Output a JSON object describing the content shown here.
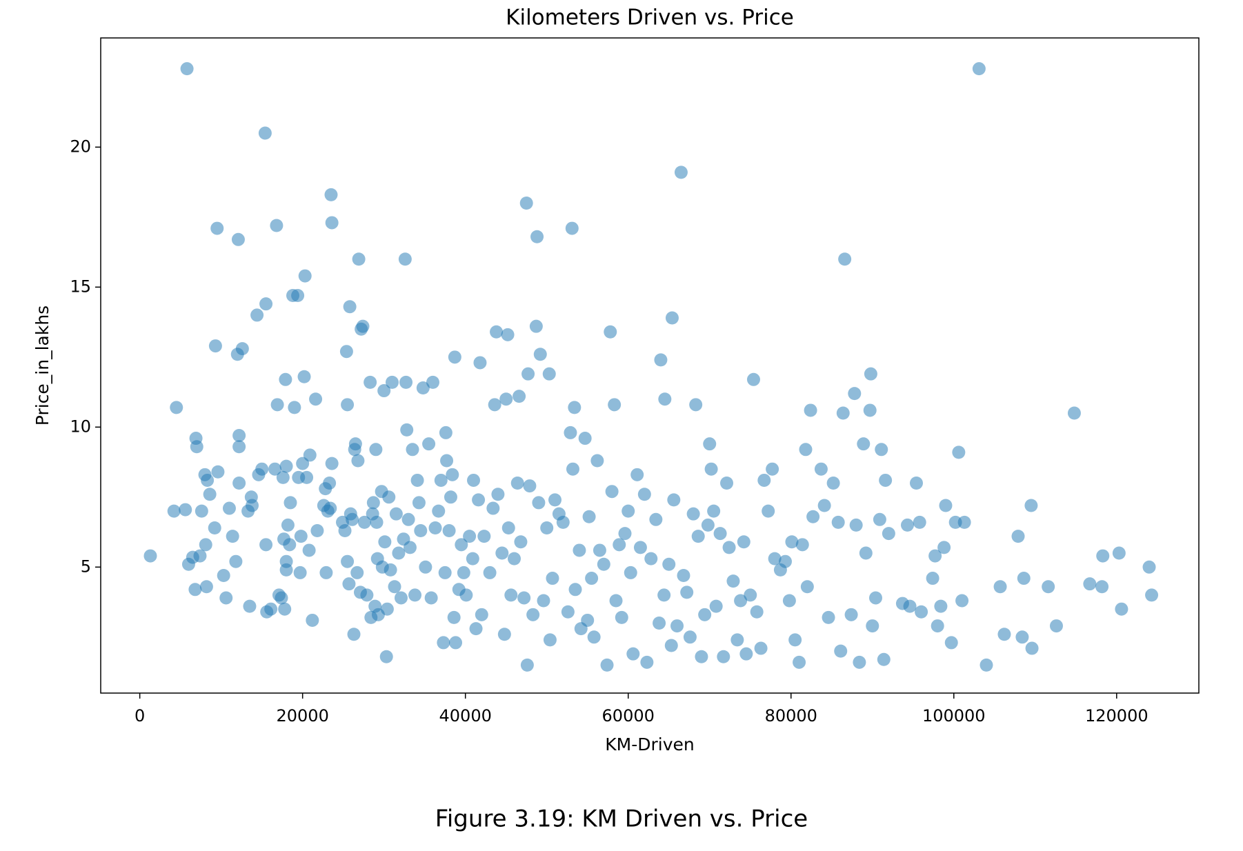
{
  "chart_data": {
    "type": "scatter",
    "title": "Kilometers Driven vs. Price",
    "x_label": "KM-Driven",
    "y_label": "Price_in_lakhs",
    "caption": "Figure 3.19: KM Driven vs. Price",
    "color": "#1f77b4",
    "alpha": 0.5,
    "xlim": [
      -4800,
      130100
    ],
    "ylim": [
      0.5,
      23.9
    ],
    "xticks": [
      0,
      20000,
      40000,
      60000,
      80000,
      100000,
      120000
    ],
    "yticks": [
      5,
      10,
      15,
      20
    ],
    "x": [
      1300,
      4200,
      4500,
      5600,
      5800,
      6000,
      6500,
      6800,
      6900,
      7000,
      7400,
      7600,
      8000,
      8100,
      8200,
      8300,
      8600,
      9200,
      9300,
      9500,
      9600,
      10300,
      10600,
      11000,
      11400,
      11800,
      12000,
      12100,
      12200,
      12200,
      12200,
      12600,
      13300,
      13500,
      13700,
      13800,
      14400,
      14600,
      15000,
      15400,
      15500,
      15500,
      15600,
      16100,
      16600,
      16800,
      16900,
      17100,
      17400,
      17600,
      17700,
      17800,
      17900,
      18000,
      18000,
      18000,
      18200,
      18400,
      18500,
      18800,
      19000,
      19400,
      19500,
      19700,
      19800,
      20000,
      20200,
      20300,
      20500,
      20800,
      20900,
      21200,
      21600,
      21800,
      22600,
      22800,
      22900,
      23100,
      23300,
      23400,
      23500,
      23600,
      23600,
      24900,
      25200,
      25400,
      25500,
      25500,
      25700,
      25800,
      25900,
      26100,
      26300,
      26400,
      26500,
      26700,
      26800,
      26900,
      27100,
      27200,
      27400,
      27600,
      27900,
      28300,
      28400,
      28600,
      28700,
      28900,
      29000,
      29100,
      29200,
      29300,
      29700,
      29800,
      30000,
      30100,
      30300,
      30400,
      30600,
      30800,
      31000,
      31300,
      31500,
      31800,
      32100,
      32400,
      32600,
      32700,
      32800,
      33000,
      33200,
      33500,
      33800,
      34100,
      34300,
      34500,
      34800,
      35100,
      35500,
      35800,
      36000,
      36300,
      36700,
      37000,
      37300,
      37500,
      37600,
      37700,
      38000,
      38200,
      38400,
      38600,
      38700,
      38800,
      39200,
      39500,
      39800,
      40100,
      40500,
      40900,
      41000,
      41300,
      41600,
      41800,
      42000,
      42300,
      43000,
      43400,
      43600,
      43800,
      44000,
      44500,
      44800,
      45000,
      45200,
      45300,
      45600,
      46000,
      46400,
      46600,
      46800,
      47200,
      47500,
      47600,
      47700,
      47900,
      48300,
      48700,
      48800,
      49000,
      49200,
      49600,
      50000,
      50300,
      50400,
      50700,
      51000,
      51500,
      52000,
      52600,
      52900,
      53100,
      53200,
      53400,
      53500,
      54000,
      54200,
      54700,
      55000,
      55200,
      55500,
      55800,
      56200,
      56500,
      57000,
      57400,
      57800,
      58000,
      58300,
      58500,
      58900,
      59200,
      59600,
      60000,
      60300,
      60600,
      61100,
      61500,
      62000,
      62300,
      62800,
      63400,
      63800,
      64000,
      64400,
      64500,
      65000,
      65300,
      65400,
      65600,
      66000,
      66500,
      66800,
      67200,
      67600,
      68000,
      68300,
      68600,
      69000,
      69400,
      69800,
      70000,
      70200,
      70500,
      70800,
      71300,
      71700,
      72100,
      72400,
      72900,
      73400,
      73800,
      74200,
      74500,
      75000,
      75400,
      75800,
      76300,
      76700,
      77200,
      77700,
      78000,
      78700,
      79300,
      79800,
      80100,
      80500,
      81000,
      81400,
      81800,
      82000,
      82400,
      82700,
      83700,
      84100,
      84600,
      85200,
      85800,
      86100,
      86400,
      86600,
      87400,
      87800,
      88000,
      88400,
      88900,
      89200,
      89700,
      89800,
      90000,
      90400,
      90900,
      91100,
      91400,
      91600,
      92000,
      93700,
      94300,
      94600,
      95400,
      95800,
      96000,
      97400,
      97700,
      98000,
      98400,
      98800,
      99000,
      99700,
      100200,
      100600,
      101000,
      101300,
      103100,
      104000,
      105700,
      106200,
      107900,
      108400,
      108600,
      109500,
      109600,
      111600,
      112600,
      114800,
      116700,
      118200,
      118300,
      120300,
      120600,
      124000,
      124300
    ],
    "values": [
      5.4,
      7.0,
      10.7,
      7.05,
      22.8,
      5.1,
      5.35,
      4.2,
      9.6,
      9.3,
      5.4,
      7.0,
      8.3,
      5.8,
      4.3,
      8.1,
      7.6,
      6.4,
      12.9,
      17.1,
      8.4,
      4.7,
      3.9,
      7.1,
      6.1,
      5.2,
      12.6,
      16.7,
      9.7,
      9.3,
      8.0,
      12.8,
      7.0,
      3.6,
      7.5,
      7.2,
      14.0,
      8.3,
      8.5,
      20.5,
      14.4,
      5.8,
      3.4,
      3.5,
      8.5,
      17.2,
      10.8,
      4.0,
      3.9,
      8.2,
      6.0,
      3.5,
      11.7,
      5.2,
      4.9,
      8.6,
      6.5,
      5.8,
      7.3,
      14.7,
      10.7,
      14.7,
      8.2,
      4.8,
      6.1,
      8.7,
      11.8,
      15.4,
      8.2,
      5.6,
      9.0,
      3.1,
      11.0,
      6.3,
      7.2,
      7.8,
      4.8,
      7.0,
      8.0,
      7.1,
      18.3,
      17.3,
      8.7,
      6.6,
      6.3,
      12.7,
      10.8,
      5.2,
      4.4,
      14.3,
      6.9,
      6.7,
      2.6,
      9.2,
      9.4,
      4.8,
      8.8,
      16.0,
      4.1,
      13.5,
      13.6,
      6.6,
      4.0,
      11.6,
      3.2,
      6.9,
      7.3,
      3.6,
      9.2,
      6.6,
      5.3,
      3.3,
      7.7,
      5.0,
      11.3,
      5.9,
      1.8,
      3.5,
      7.5,
      4.9,
      11.6,
      4.3,
      6.9,
      5.5,
      3.9,
      6.0,
      16.0,
      11.6,
      9.9,
      6.7,
      5.7,
      9.2,
      4.0,
      8.1,
      7.3,
      6.3,
      11.4,
      5.0,
      9.4,
      3.9,
      11.6,
      6.4,
      7.0,
      8.1,
      2.3,
      4.8,
      9.8,
      8.8,
      6.3,
      7.5,
      8.3,
      3.2,
      12.5,
      2.3,
      4.2,
      5.8,
      4.8,
      4.0,
      6.1,
      5.3,
      8.1,
      2.8,
      7.4,
      12.3,
      3.3,
      6.1,
      4.8,
      7.1,
      10.8,
      13.4,
      7.6,
      5.5,
      2.6,
      11.0,
      13.3,
      6.4,
      4.0,
      5.3,
      8.0,
      11.1,
      5.9,
      3.9,
      18.0,
      1.5,
      11.9,
      7.9,
      3.3,
      13.6,
      16.8,
      7.3,
      12.6,
      3.8,
      6.4,
      11.9,
      2.4,
      4.6,
      7.4,
      6.9,
      6.6,
      3.4,
      9.8,
      17.1,
      8.5,
      10.7,
      4.2,
      5.6,
      2.8,
      9.6,
      3.1,
      6.8,
      4.6,
      2.5,
      8.8,
      5.6,
      5.1,
      1.5,
      13.4,
      7.7,
      10.8,
      3.8,
      5.8,
      3.2,
      6.2,
      7.0,
      4.8,
      1.9,
      8.3,
      5.7,
      7.6,
      1.6,
      5.3,
      6.7,
      3.0,
      12.4,
      4.0,
      11.0,
      5.1,
      2.2,
      13.9,
      7.4,
      2.9,
      19.1,
      4.7,
      4.1,
      2.5,
      6.9,
      10.8,
      6.1,
      1.8,
      3.3,
      6.5,
      9.4,
      8.5,
      7.0,
      3.6,
      6.2,
      1.8,
      8.0,
      5.7,
      4.5,
      2.4,
      3.8,
      5.9,
      1.9,
      4.0,
      11.7,
      3.4,
      2.1,
      8.1,
      7.0,
      8.5,
      5.3,
      4.9,
      5.2,
      3.8,
      5.9,
      2.4,
      1.6,
      5.8,
      9.2,
      4.3,
      10.6,
      6.8,
      8.5,
      7.2,
      3.2,
      8.0,
      6.6,
      2.0,
      10.5,
      16.0,
      3.3,
      11.2,
      6.5,
      1.6,
      9.4,
      5.5,
      10.6,
      11.9,
      2.9,
      3.9,
      6.7,
      9.2,
      1.7,
      8.1,
      6.2,
      3.7,
      6.5,
      3.6,
      8.0,
      6.6,
      3.4,
      4.6,
      5.4,
      2.9,
      3.6,
      5.7,
      7.2,
      2.3,
      6.6,
      9.1,
      3.8,
      6.6,
      22.8,
      1.5,
      4.3,
      2.6,
      6.1,
      2.5,
      4.6,
      7.2,
      2.1,
      4.3,
      2.9,
      10.5,
      4.4,
      4.3,
      5.4,
      5.5,
      3.5,
      5.0,
      4.0
    ]
  }
}
